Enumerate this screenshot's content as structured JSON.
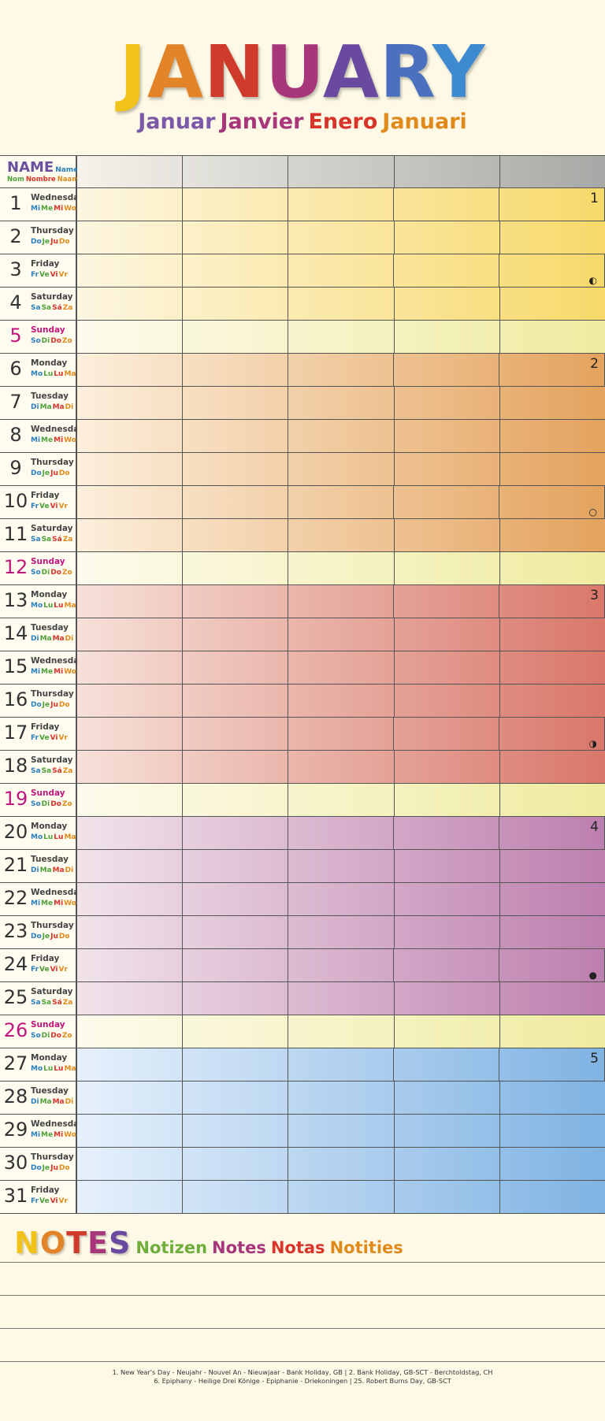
{
  "title": {
    "text": "JANUARY",
    "letters": [
      "J",
      "A",
      "N",
      "U",
      "A",
      "R",
      "Y"
    ]
  },
  "title_colors": [
    "#f1c31a",
    "#e28427",
    "#cf3a2a",
    "#a8367a",
    "#6a4aa0",
    "#4b70bf",
    "#3e8ad0"
  ],
  "subtitle": [
    {
      "text": "Januar",
      "color": "#7b59a8"
    },
    {
      "text": "Janvier",
      "color": "#a8367a"
    },
    {
      "text": "Enero",
      "color": "#d8342a"
    },
    {
      "text": "Januari",
      "color": "#e08a1c"
    }
  ],
  "name_header": {
    "main": "NAME",
    "main_small": "Name",
    "sub": [
      "Nom",
      "Nombre",
      "Naam"
    ],
    "sub_colors": [
      "#4fa13a",
      "#d8342a",
      "#e08a1c"
    ]
  },
  "abbr_colors": [
    "#2b7fc1",
    "#4fa13a",
    "#d8342a",
    "#e08a1c"
  ],
  "weekday_abbrs": {
    "Monday": [
      "Mo",
      "Lu",
      "Lu",
      "Ma"
    ],
    "Tuesday": [
      "Di",
      "Ma",
      "Ma",
      "Di"
    ],
    "Wednesday": [
      "Mi",
      "Me",
      "Mi",
      "Wo"
    ],
    "Thursday": [
      "Do",
      "Je",
      "Ju",
      "Do"
    ],
    "Friday": [
      "Fr",
      "Ve",
      "Vi",
      "Vr"
    ],
    "Saturday": [
      "Sa",
      "Sa",
      "Sá",
      "Za"
    ],
    "Sunday": [
      "So",
      "Di",
      "Do",
      "Zo"
    ]
  },
  "days": [
    {
      "num": "1",
      "weekday": "Wednesday",
      "mark": "1"
    },
    {
      "num": "2",
      "weekday": "Thursday"
    },
    {
      "num": "3",
      "weekday": "Friday",
      "moon": "◐"
    },
    {
      "num": "4",
      "weekday": "Saturday"
    },
    {
      "num": "5",
      "weekday": "Sunday"
    },
    {
      "num": "6",
      "weekday": "Monday",
      "mark": "2"
    },
    {
      "num": "7",
      "weekday": "Tuesday"
    },
    {
      "num": "8",
      "weekday": "Wednesday"
    },
    {
      "num": "9",
      "weekday": "Thursday"
    },
    {
      "num": "10",
      "weekday": "Friday",
      "moon": "○"
    },
    {
      "num": "11",
      "weekday": "Saturday"
    },
    {
      "num": "12",
      "weekday": "Sunday"
    },
    {
      "num": "13",
      "weekday": "Monday",
      "mark": "3"
    },
    {
      "num": "14",
      "weekday": "Tuesday"
    },
    {
      "num": "15",
      "weekday": "Wednesday"
    },
    {
      "num": "16",
      "weekday": "Thursday"
    },
    {
      "num": "17",
      "weekday": "Friday",
      "moon": "◑"
    },
    {
      "num": "18",
      "weekday": "Saturday"
    },
    {
      "num": "19",
      "weekday": "Sunday"
    },
    {
      "num": "20",
      "weekday": "Monday",
      "mark": "4"
    },
    {
      "num": "21",
      "weekday": "Tuesday"
    },
    {
      "num": "22",
      "weekday": "Wednesday"
    },
    {
      "num": "23",
      "weekday": "Thursday"
    },
    {
      "num": "24",
      "weekday": "Friday",
      "moon": "●"
    },
    {
      "num": "25",
      "weekday": "Saturday"
    },
    {
      "num": "26",
      "weekday": "Sunday"
    },
    {
      "num": "27",
      "weekday": "Monday",
      "mark": "5"
    },
    {
      "num": "28",
      "weekday": "Tuesday"
    },
    {
      "num": "29",
      "weekday": "Wednesday"
    },
    {
      "num": "30",
      "weekday": "Thursday"
    },
    {
      "num": "31",
      "weekday": "Friday"
    }
  ],
  "week_colors": [
    {
      "light": "#fdf6e0",
      "dark": "#f7d96a"
    },
    {
      "light": "#fcefdc",
      "dark": "#e4a35e"
    },
    {
      "light": "#f6e0d8",
      "dark": "#d9776a"
    },
    {
      "light": "#f1e3ea",
      "dark": "#bd7fae"
    },
    {
      "light": "#e6f0fb",
      "dark": "#7fb3e3"
    }
  ],
  "sunday_colors": {
    "light": "#fdfbec",
    "dark": "#efeba0"
  },
  "header_row_colors": {
    "light": "#f4f2ea",
    "dark": "#a8a8a6"
  },
  "notes": {
    "main": "NOTES",
    "main_colors": [
      "#f1c31a",
      "#e28427",
      "#cf3a2a",
      "#a8367a",
      "#6a4aa0"
    ],
    "translations": [
      {
        "text": "Notizen",
        "color": "#6fae3b"
      },
      {
        "text": "Notes",
        "color": "#a8367a"
      },
      {
        "text": "Notas",
        "color": "#d8342a"
      },
      {
        "text": "Notities",
        "color": "#e08a1c"
      }
    ]
  },
  "footer": {
    "line1": "1. New Year's Day - Neujahr - Nouvel An - Nieuwjaar - Bank Holiday, GB  |  2. Bank Holiday, GB-SCT - Berchtoldstag, CH",
    "line2": "6. Epiphany - Heilige Drei Könige - Epiphanie - Driekoningen  |  25. Robert Burns Day, GB-SCT"
  }
}
